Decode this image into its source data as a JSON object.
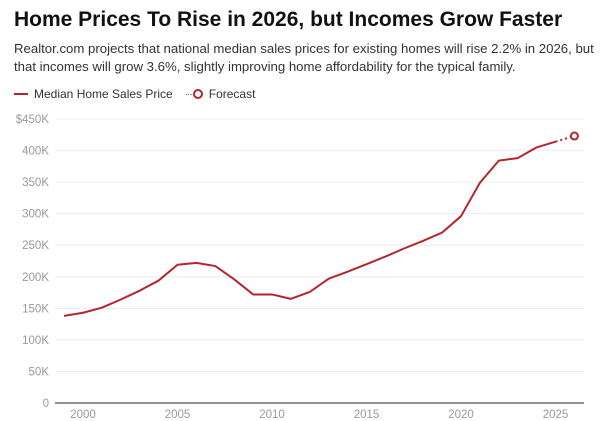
{
  "title": "Home Prices To Rise in 2026, but Incomes Grow Faster",
  "subtitle": "Realtor.com projects that national median sales prices for existing homes will rise 2.2% in 2026, but that incomes will grow 3.6%, slightly improving home affordability for the typical family.",
  "chart_data": {
    "type": "line",
    "title": "Home Prices To Rise in 2026, but Incomes Grow Faster",
    "xlabel": "",
    "ylabel": "",
    "ylim": [
      0,
      450000
    ],
    "xlim": [
      1999,
      2026
    ],
    "grid": true,
    "legend_position": "top-left",
    "y_ticks": [
      0,
      50000,
      100000,
      150000,
      200000,
      250000,
      300000,
      350000,
      400000,
      450000
    ],
    "y_tick_labels": [
      "0",
      "50K",
      "100K",
      "150K",
      "200K",
      "250K",
      "300K",
      "350K",
      "400K",
      "$450K"
    ],
    "x_ticks": [
      2000,
      2005,
      2010,
      2015,
      2020,
      2025
    ],
    "x_tick_labels": [
      "2000",
      "2005",
      "2010",
      "2015",
      "2020",
      "2025"
    ],
    "series": [
      {
        "name": "Median Home Sales Price",
        "color": "#b3262e",
        "x": [
          1999,
          2000,
          2001,
          2002,
          2003,
          2004,
          2005,
          2006,
          2007,
          2008,
          2009,
          2010,
          2011,
          2012,
          2013,
          2014,
          2015,
          2016,
          2017,
          2018,
          2019,
          2020,
          2021,
          2022,
          2023,
          2024,
          2025
        ],
        "values": [
          138000,
          143000,
          151000,
          164000,
          178000,
          194000,
          219000,
          222000,
          217000,
          196000,
          172000,
          172000,
          165000,
          176000,
          197000,
          208000,
          220000,
          232000,
          245000,
          257000,
          270000,
          296000,
          349000,
          384000,
          388000,
          405000,
          414000
        ]
      },
      {
        "name": "Forecast",
        "color": "#b3262e",
        "style": "dotted",
        "marker": "open-circle",
        "x": [
          2025,
          2026
        ],
        "values": [
          414000,
          423000
        ]
      }
    ]
  }
}
